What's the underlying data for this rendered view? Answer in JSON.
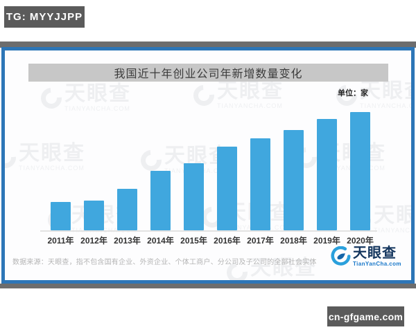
{
  "badges": {
    "tg": "TG: MYYJJPP",
    "site": "cn-gfgame.com"
  },
  "card": {
    "title": "我国近十年创业公司年新增数量变化",
    "unit_label": "单位：家",
    "source_note": "数据来源：天眼查，指不包含国有企业、外资企业、个体工商户、分公司及子公司的全部社会实体",
    "logo": {
      "brand": "天眼查",
      "domain": "TianYanCha.com"
    },
    "watermark": {
      "brand": "天眼查",
      "domain": "TIANYANCHA.COM"
    }
  },
  "chart_data": {
    "type": "bar",
    "title": "我国近十年创业公司年新增数量变化",
    "unit": "家",
    "categories": [
      "2011年",
      "2012年",
      "2013年",
      "2014年",
      "2015年",
      "2016年",
      "2017年",
      "2018年",
      "2019年",
      "2020年"
    ],
    "values_relative_pct": [
      24,
      25,
      35,
      50,
      57,
      71,
      78,
      85,
      94,
      100
    ],
    "value_labels_shown": false,
    "y_axis_shown": false,
    "gridlines": false,
    "legend": "none",
    "bar_color": "#40a7de",
    "baseline_color": "#e2e2e2"
  }
}
